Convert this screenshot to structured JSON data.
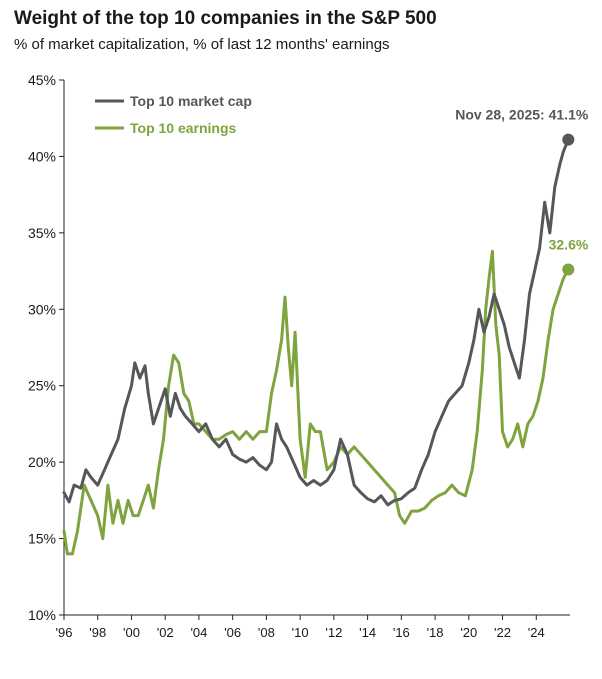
{
  "chart_data": {
    "type": "line",
    "title": "Weight of the top 10 companies in the S&P 500",
    "subtitle": "% of market capitalization, % of last 12 months' earnings",
    "xlabel": "",
    "ylabel": "",
    "xlim": [
      1996,
      2026
    ],
    "ylim": [
      10,
      45
    ],
    "y_ticks": [
      10,
      15,
      20,
      25,
      30,
      35,
      40,
      45
    ],
    "y_tick_labels": [
      "10%",
      "15%",
      "20%",
      "25%",
      "30%",
      "35%",
      "40%",
      "45%"
    ],
    "x_ticks": [
      1996,
      1998,
      2000,
      2002,
      2004,
      2006,
      2008,
      2010,
      2012,
      2014,
      2016,
      2018,
      2020,
      2022,
      2024
    ],
    "x_tick_labels": [
      "'96",
      "'98",
      "'00",
      "'02",
      "'04",
      "'06",
      "'08",
      "'10",
      "'12",
      "'14",
      "'16",
      "'18",
      "'20",
      "'22",
      "'24"
    ],
    "grid": false,
    "legend_position": "top-left",
    "series": [
      {
        "name": "Top 10 market cap",
        "color": "#555759",
        "x": [
          1996.0,
          1996.3,
          1996.6,
          1997.0,
          1997.3,
          1997.6,
          1998.0,
          1998.4,
          1998.8,
          1999.2,
          1999.6,
          2000.0,
          2000.2,
          2000.5,
          2000.8,
          2001.0,
          2001.3,
          2001.6,
          2002.0,
          2002.3,
          2002.6,
          2002.9,
          2003.2,
          2003.6,
          2004.0,
          2004.4,
          2004.8,
          2005.2,
          2005.6,
          2006.0,
          2006.4,
          2006.8,
          2007.2,
          2007.6,
          2008.0,
          2008.3,
          2008.6,
          2008.9,
          2009.2,
          2009.6,
          2010.0,
          2010.4,
          2010.8,
          2011.2,
          2011.6,
          2012.0,
          2012.4,
          2012.8,
          2013.2,
          2013.6,
          2014.0,
          2014.4,
          2014.8,
          2015.2,
          2015.6,
          2016.0,
          2016.4,
          2016.8,
          2017.2,
          2017.6,
          2018.0,
          2018.4,
          2018.8,
          2019.2,
          2019.6,
          2020.0,
          2020.3,
          2020.6,
          2020.9,
          2021.2,
          2021.5,
          2021.8,
          2022.1,
          2022.4,
          2022.7,
          2023.0,
          2023.3,
          2023.6,
          2023.9,
          2024.2,
          2024.5,
          2024.8,
          2025.1,
          2025.4,
          2025.6,
          2025.9
        ],
        "values": [
          18.0,
          17.4,
          18.5,
          18.3,
          19.5,
          19.0,
          18.5,
          19.5,
          20.5,
          21.5,
          23.5,
          25.0,
          26.5,
          25.5,
          26.3,
          24.5,
          22.5,
          23.5,
          24.8,
          23.0,
          24.5,
          23.5,
          23.0,
          22.5,
          22.0,
          22.5,
          21.5,
          21.0,
          21.5,
          20.5,
          20.2,
          20.0,
          20.3,
          19.8,
          19.5,
          20.0,
          22.5,
          21.5,
          21.0,
          20.0,
          19.0,
          18.5,
          18.8,
          18.5,
          18.8,
          19.5,
          21.5,
          20.5,
          18.5,
          18.0,
          17.6,
          17.4,
          17.8,
          17.2,
          17.5,
          17.6,
          18.0,
          18.3,
          19.5,
          20.5,
          22.0,
          23.0,
          24.0,
          24.5,
          25.0,
          26.5,
          28.0,
          30.0,
          28.5,
          29.5,
          31.0,
          30.0,
          29.0,
          27.5,
          26.5,
          25.5,
          28.0,
          31.0,
          32.5,
          34.0,
          37.0,
          35.0,
          38.0,
          39.5,
          40.3,
          41.1
        ]
      },
      {
        "name": "Top 10 earnings",
        "color": "#7fa33f",
        "x": [
          1996.0,
          1996.2,
          1996.5,
          1996.8,
          1997.2,
          1997.6,
          1998.0,
          1998.3,
          1998.6,
          1998.9,
          1999.2,
          1999.5,
          1999.8,
          2000.1,
          2000.4,
          2000.7,
          2001.0,
          2001.3,
          2001.6,
          2001.9,
          2002.2,
          2002.5,
          2002.8,
          2003.1,
          2003.4,
          2003.7,
          2004.0,
          2004.4,
          2004.8,
          2005.2,
          2005.6,
          2006.0,
          2006.4,
          2006.8,
          2007.2,
          2007.6,
          2008.0,
          2008.3,
          2008.6,
          2008.9,
          2009.1,
          2009.3,
          2009.5,
          2009.7,
          2010.0,
          2010.3,
          2010.6,
          2010.9,
          2011.2,
          2011.6,
          2012.0,
          2012.4,
          2012.8,
          2013.2,
          2013.6,
          2014.0,
          2014.4,
          2014.8,
          2015.2,
          2015.6,
          2015.9,
          2016.2,
          2016.6,
          2017.0,
          2017.4,
          2017.8,
          2018.2,
          2018.6,
          2019.0,
          2019.4,
          2019.8,
          2020.2,
          2020.5,
          2020.8,
          2021.0,
          2021.2,
          2021.4,
          2021.6,
          2021.8,
          2022.0,
          2022.3,
          2022.6,
          2022.9,
          2023.2,
          2023.5,
          2023.8,
          2024.1,
          2024.4,
          2024.7,
          2025.0,
          2025.3,
          2025.6,
          2025.9
        ],
        "values": [
          15.5,
          14.0,
          14.0,
          15.5,
          18.5,
          17.5,
          16.5,
          15.0,
          18.5,
          16.0,
          17.5,
          16.0,
          17.5,
          16.5,
          16.5,
          17.5,
          18.5,
          17.0,
          19.5,
          21.5,
          25.0,
          27.0,
          26.5,
          24.5,
          24.0,
          22.5,
          22.5,
          22.0,
          21.5,
          21.5,
          21.8,
          22.0,
          21.5,
          22.0,
          21.5,
          22.0,
          22.0,
          24.5,
          26.0,
          28.0,
          30.8,
          27.5,
          25.0,
          28.5,
          21.5,
          19.0,
          22.5,
          22.0,
          22.0,
          19.5,
          20.0,
          21.0,
          20.5,
          21.0,
          20.5,
          20.0,
          19.5,
          19.0,
          18.5,
          18.0,
          16.5,
          16.0,
          16.8,
          16.8,
          17.0,
          17.5,
          17.8,
          18.0,
          18.5,
          18.0,
          17.8,
          19.5,
          22.0,
          26.0,
          30.0,
          32.0,
          33.8,
          29.0,
          27.0,
          22.0,
          21.0,
          21.5,
          22.5,
          21.0,
          22.5,
          23.0,
          24.0,
          25.5,
          28.0,
          30.0,
          31.0,
          32.0,
          32.6
        ]
      }
    ],
    "annotations": [
      {
        "series": "Top 10 market cap",
        "x": 2025.9,
        "y": 41.1,
        "text": "Nov 28, 2025: 41.1%"
      },
      {
        "series": "Top 10 earnings",
        "x": 2025.9,
        "y": 32.6,
        "text": "32.6%"
      }
    ]
  }
}
